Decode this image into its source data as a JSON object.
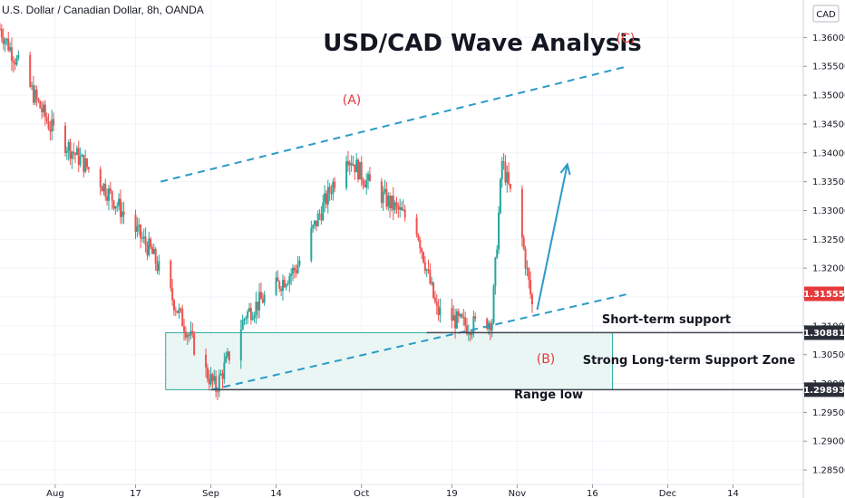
{
  "header": {
    "symbol_title": "U.S. Dollar / Canadian Dollar, 8h, OANDA",
    "currency": "CAD"
  },
  "chart_data": {
    "type": "candlestick",
    "title": "USD/CAD Wave Analysis",
    "ylim": [
      1.2825,
      1.3665
    ],
    "y_ticks": [
      "1.36000",
      "1.35500",
      "1.35000",
      "1.34500",
      "1.34000",
      "1.33500",
      "1.33000",
      "1.32500",
      "1.32000",
      "1.31500",
      "1.31000",
      "1.30500",
      "1.30000",
      "1.29500",
      "1.29000",
      "1.28500"
    ],
    "y_tick_values": [
      1.36,
      1.355,
      1.35,
      1.345,
      1.34,
      1.335,
      1.33,
      1.325,
      1.32,
      1.315,
      1.31,
      1.305,
      1.3,
      1.295,
      1.29,
      1.285
    ],
    "x_ticks": [
      "Aug",
      "17",
      "Sep",
      "14",
      "Oct",
      "19",
      "Nov",
      "16",
      "Dec",
      "14"
    ],
    "x_tick_dates": [
      "2020-08-01",
      "2020-08-17",
      "2020-09-01",
      "2020-09-14",
      "2020-10-01",
      "2020-10-19",
      "2020-11-01",
      "2020-11-16",
      "2020-12-01",
      "2020-12-14"
    ],
    "current_price": "1.31555",
    "price_labels": [
      {
        "text": "1.31555",
        "value": 1.31555,
        "color": "#e5393c"
      },
      {
        "text": "1.30881",
        "value": 1.30881,
        "color": "#2a2e39"
      },
      {
        "text": "1.29893",
        "value": 1.29893,
        "color": "#2a2e39"
      }
    ],
    "wave_labels": [
      "(A)",
      "(B)",
      "(C)"
    ],
    "annotations": {
      "short_term": "Short-term support",
      "zone": "Strong Long-term Support Zone",
      "range_low": "Range low"
    },
    "series": {
      "dates": [
        "2020-07-21",
        "2020-07-31",
        "2020-08-10",
        "2020-08-20",
        "2020-08-31",
        "2020-09-02",
        "2020-09-08",
        "2020-09-18",
        "2020-09-28",
        "2020-10-02",
        "2020-10-12",
        "2020-10-16",
        "2020-10-22",
        "2020-10-27",
        "2020-10-29",
        "2020-11-02",
        "2020-11-04"
      ],
      "closes": [
        1.3615,
        1.3445,
        1.335,
        1.323,
        1.302,
        1.2992,
        1.312,
        1.32,
        1.34,
        1.335,
        1.327,
        1.3125,
        1.31,
        1.311,
        1.3385,
        1.325,
        1.3135
      ]
    },
    "channels": {
      "upper": {
        "from": {
          "date": "2020-08-22",
          "value": 1.335
        },
        "to": {
          "date": "2020-11-23",
          "value": 1.355
        }
      },
      "lower": {
        "from": {
          "date": "2020-09-01",
          "value": 1.2989
        },
        "to": {
          "date": "2020-11-23",
          "value": 1.3155
        }
      },
      "arrow": {
        "from": {
          "date": "2020-11-05",
          "value": 1.3128
        },
        "to": {
          "date": "2020-11-11",
          "value": 1.338
        }
      },
      "zone": {
        "from_date": "2020-08-23",
        "to_date": "2020-11-20",
        "top": 1.30881,
        "bottom": 1.29893
      }
    },
    "colors": {
      "up": "#26a69a",
      "down": "#ef5350",
      "channel": "#2a9bc7",
      "zone_border": "#2aa89a",
      "zone_fill": "#eaf6f4",
      "wave": "#e5393c"
    }
  }
}
